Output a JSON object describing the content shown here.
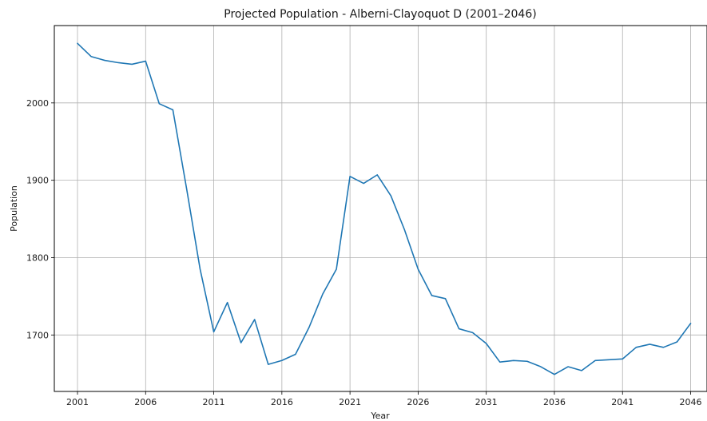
{
  "chart_data": {
    "type": "line",
    "title": "Projected Population - Alberni-Clayoquot D (2001–2046)",
    "xlabel": "Year",
    "ylabel": "Population",
    "xlim": [
      1999.3,
      2047.2
    ],
    "ylim": [
      1627,
      2100
    ],
    "grid": true,
    "x_ticks": [
      2001,
      2006,
      2011,
      2016,
      2021,
      2026,
      2031,
      2036,
      2041,
      2046
    ],
    "y_ticks": [
      1700,
      1800,
      1900,
      2000
    ],
    "series": [
      {
        "color": "#1f77b4",
        "x": [
          2001,
          2002,
          2003,
          2004,
          2005,
          2006,
          2007,
          2008,
          2009,
          2010,
          2011,
          2012,
          2013,
          2014,
          2015,
          2016,
          2017,
          2018,
          2019,
          2020,
          2021,
          2022,
          2023,
          2024,
          2025,
          2026,
          2027,
          2028,
          2029,
          2030,
          2031,
          2032,
          2033,
          2034,
          2035,
          2036,
          2037,
          2038,
          2039,
          2040,
          2041,
          2042,
          2043,
          2044,
          2045,
          2046
        ],
        "values": [
          2077,
          2060,
          2055,
          2052,
          2050,
          2054,
          1999,
          1991,
          1890,
          1785,
          1704,
          1742,
          1690,
          1720,
          1662,
          1667,
          1675,
          1710,
          1753,
          1785,
          1905,
          1896,
          1907,
          1880,
          1836,
          1785,
          1751,
          1747,
          1708,
          1703,
          1689,
          1665,
          1667,
          1666,
          1659,
          1649,
          1659,
          1654,
          1667,
          1668,
          1669,
          1684,
          1688,
          1684,
          1691,
          1715
        ]
      }
    ]
  }
}
